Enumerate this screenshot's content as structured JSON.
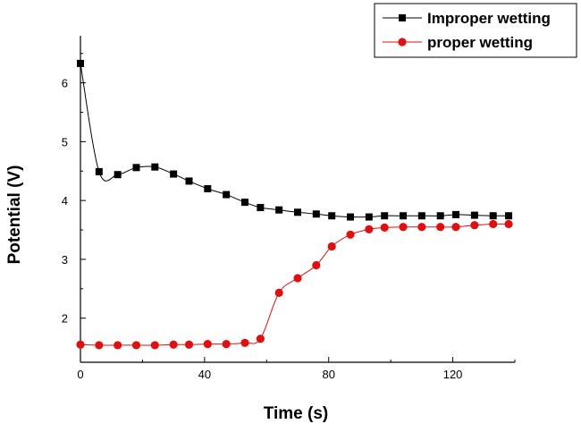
{
  "chart_data": {
    "type": "line",
    "xlabel": "Time (s)",
    "ylabel": "Potential (V)",
    "xlim": [
      0,
      140
    ],
    "ylim": [
      1.25,
      6.8
    ],
    "xticks": [
      0,
      40,
      80,
      120
    ],
    "yticks": [
      2,
      3,
      4,
      5,
      6
    ],
    "legend_position": "top-right",
    "series": [
      {
        "name": "Improper wetting",
        "color": "#000000",
        "marker": "square",
        "x": [
          0,
          6,
          12,
          18,
          24,
          30,
          35,
          41,
          47,
          53,
          58,
          64,
          70,
          76,
          81,
          87,
          93,
          98,
          104,
          110,
          116,
          121,
          127,
          133,
          138
        ],
        "y": [
          6.33,
          4.49,
          4.44,
          4.56,
          4.57,
          4.45,
          4.33,
          4.2,
          4.1,
          3.97,
          3.88,
          3.84,
          3.8,
          3.77,
          3.74,
          3.72,
          3.72,
          3.74,
          3.74,
          3.74,
          3.74,
          3.76,
          3.75,
          3.74,
          3.74
        ]
      },
      {
        "name": "proper wetting",
        "color": "#e01010",
        "marker": "circle",
        "x": [
          0,
          6,
          12,
          18,
          24,
          30,
          35,
          41,
          47,
          53,
          58,
          64,
          70,
          76,
          81,
          87,
          93,
          98,
          104,
          110,
          116,
          121,
          127,
          133,
          138
        ],
        "y": [
          1.55,
          1.54,
          1.54,
          1.54,
          1.54,
          1.55,
          1.55,
          1.56,
          1.56,
          1.58,
          1.65,
          2.43,
          2.68,
          2.9,
          3.22,
          3.42,
          3.51,
          3.54,
          3.55,
          3.55,
          3.55,
          3.55,
          3.58,
          3.6,
          3.6
        ]
      }
    ]
  }
}
